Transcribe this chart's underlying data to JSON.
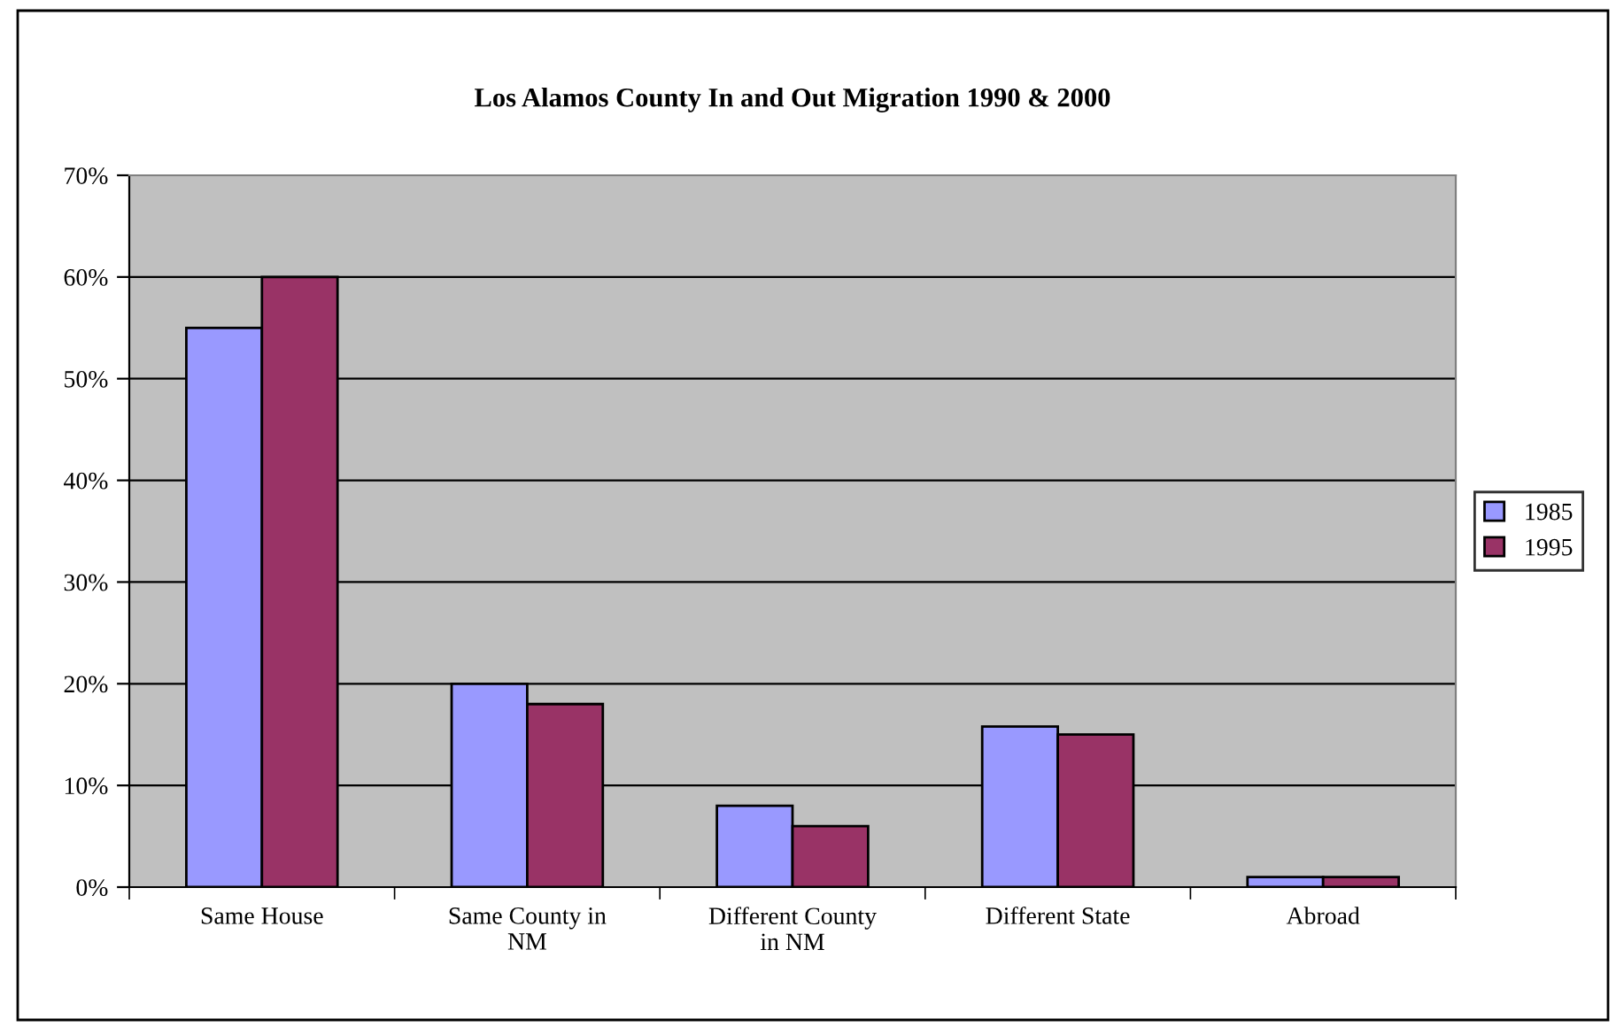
{
  "chart_data": {
    "type": "bar",
    "title": "Los Alamos County In and Out Migration 1990 & 2000",
    "categories": [
      "Same House",
      "Same County in\nNM",
      "Different County\nin NM",
      "Different State",
      "Abroad"
    ],
    "series": [
      {
        "name": "1985",
        "color": "#9999ff",
        "values": [
          55,
          20,
          8,
          15.8,
          1
        ]
      },
      {
        "name": "1995",
        "color": "#993366",
        "values": [
          60,
          18,
          6,
          15,
          1
        ]
      }
    ],
    "ylim": [
      0,
      70
    ],
    "yticks": [
      {
        "value": 0,
        "label": "0%"
      },
      {
        "value": 10,
        "label": "10%"
      },
      {
        "value": 20,
        "label": "20%"
      },
      {
        "value": 30,
        "label": "30%"
      },
      {
        "value": 40,
        "label": "40%"
      },
      {
        "value": 50,
        "label": "50%"
      },
      {
        "value": 60,
        "label": "60%"
      },
      {
        "value": 70,
        "label": "70%"
      }
    ],
    "grid": "y",
    "legend": "right"
  }
}
